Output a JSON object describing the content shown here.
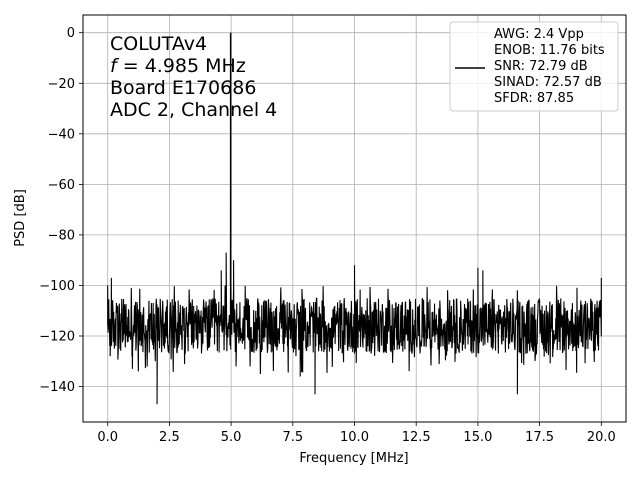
{
  "chart_data": {
    "type": "line",
    "xlabel": "Frequency [MHz]",
    "ylabel": "PSD [dB]",
    "xlim": [
      -1.0,
      21.0
    ],
    "ylim": [
      -154,
      7
    ],
    "x_ticks": [
      0.0,
      2.5,
      5.0,
      7.5,
      10.0,
      12.5,
      15.0,
      17.5,
      20.0
    ],
    "x_tick_labels": [
      "0.0",
      "2.5",
      "5.0",
      "7.5",
      "10.0",
      "12.5",
      "15.0",
      "17.5",
      "20.0"
    ],
    "y_ticks": [
      0,
      -20,
      -40,
      -60,
      -80,
      -100,
      -120,
      -140
    ],
    "y_tick_labels": [
      "0",
      "−20",
      "−40",
      "−60",
      "−80",
      "−100",
      "−120",
      "−140"
    ],
    "grid": true,
    "legend_position": "top-right",
    "annotation": {
      "line1": "COLUTAv4",
      "line2_var": "f",
      "line2_rest": " = 4.985 MHz",
      "line3": "Board E170686",
      "line4": "ADC 2, Channel 4"
    },
    "legend_lines": [
      "AWG: 2.4 Vpp",
      "ENOB: 11.76 bits",
      "SNR: 72.79 dB",
      "SINAD: 72.57 dB",
      "SFDR: 87.85"
    ],
    "series": [
      {
        "color": "#000000",
        "noise_floor_db": [
          -125,
          -102
        ],
        "fundamental": {
          "x": 4.985,
          "y": 0
        },
        "points": [
          {
            "x": 0.0,
            "y": -100
          },
          {
            "x": 0.1,
            "y": -128
          },
          {
            "x": 0.15,
            "y": -97
          },
          {
            "x": 1.0,
            "y": -133
          },
          {
            "x": 2.0,
            "y": -147
          },
          {
            "x": 4.6,
            "y": -94
          },
          {
            "x": 4.8,
            "y": -87
          },
          {
            "x": 4.985,
            "y": 0
          },
          {
            "x": 5.1,
            "y": -90
          },
          {
            "x": 5.2,
            "y": -132
          },
          {
            "x": 7.8,
            "y": -136
          },
          {
            "x": 8.4,
            "y": -143
          },
          {
            "x": 10.0,
            "y": -92
          },
          {
            "x": 15.0,
            "y": -93
          },
          {
            "x": 15.2,
            "y": -94
          },
          {
            "x": 16.6,
            "y": -143
          },
          {
            "x": 20.0,
            "y": -97
          }
        ]
      }
    ]
  }
}
